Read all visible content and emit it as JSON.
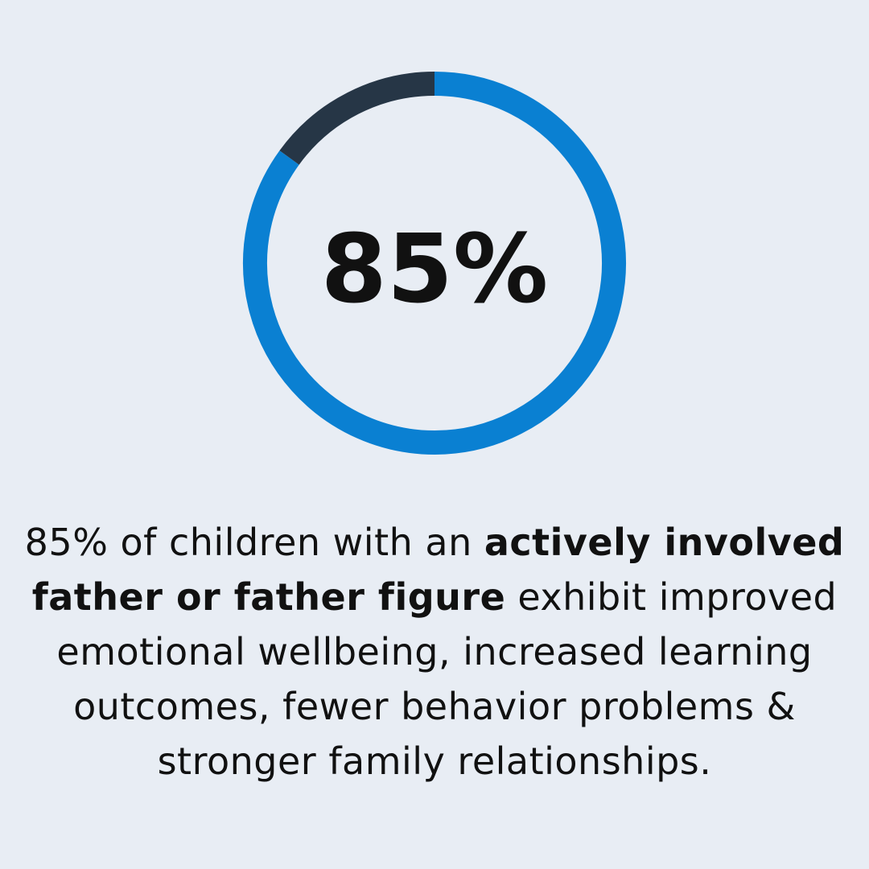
{
  "chart_data": {
    "type": "pie",
    "style": "donut",
    "categories": [
      "85%",
      "15%"
    ],
    "values": [
      85,
      15
    ],
    "colors": [
      "#0a80d2",
      "#263646"
    ],
    "center_label": "85%"
  },
  "caption": {
    "part1": "85% of children with an ",
    "bold": "actively involved father or father figure",
    "part2": " exhibit improved emotional wellbeing, increased learning outcomes, fewer behavior problems & stronger family relationships."
  },
  "colors": {
    "background": "#e8edf4",
    "accent": "#0a80d2",
    "dark": "#263646"
  }
}
